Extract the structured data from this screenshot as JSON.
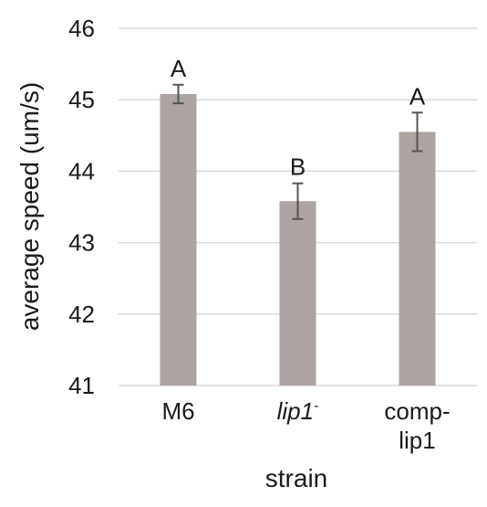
{
  "chart_data": {
    "type": "bar",
    "title": "",
    "xlabel": "strain",
    "ylabel": "average speed (um/s)",
    "ylim": [
      41,
      46
    ],
    "yticks": [
      41,
      42,
      43,
      44,
      45,
      46
    ],
    "ytick_labels": [
      "41",
      "42",
      "43",
      "44",
      "45",
      "46"
    ],
    "grid": true,
    "categories": [
      "M6",
      "lip1-",
      "comp-lip1"
    ],
    "category_labels": [
      {
        "lines": [
          {
            "text": "M6",
            "italic": false,
            "sup": ""
          }
        ]
      },
      {
        "lines": [
          {
            "text": "lip1",
            "italic": true,
            "sup": "-"
          }
        ]
      },
      {
        "lines": [
          {
            "text": "comp-",
            "italic": false,
            "sup": ""
          },
          {
            "text": "lip1",
            "italic": false,
            "sup": ""
          }
        ]
      }
    ],
    "values": [
      45.08,
      43.58,
      44.55
    ],
    "error": [
      0.13,
      0.25,
      0.27
    ],
    "significance_labels": [
      "A",
      "B",
      "A"
    ],
    "colors": {
      "bar": "#ada3a0",
      "error_bar": "#555555",
      "grid": "#d9d9d9",
      "text": "#1a1a1a"
    }
  }
}
